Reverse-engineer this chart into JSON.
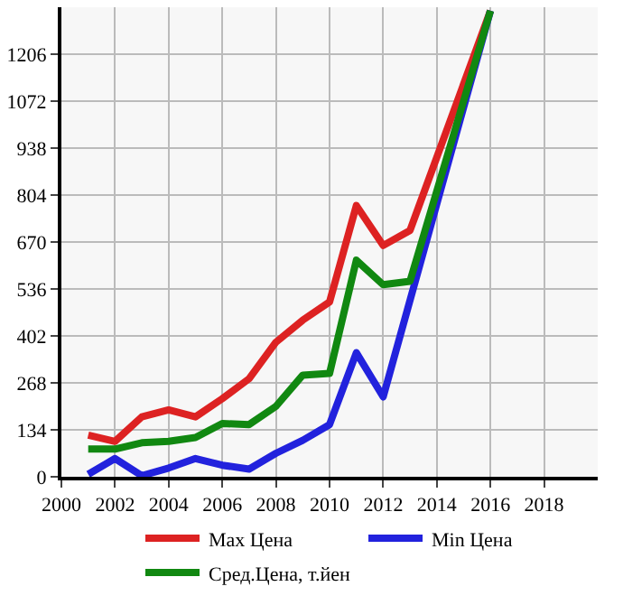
{
  "chart_data": {
    "type": "line",
    "xlim": [
      2000,
      2020
    ],
    "xticks": [
      2000,
      2002,
      2004,
      2006,
      2008,
      2010,
      2012,
      2014,
      2016,
      2018
    ],
    "ylim": [
      0,
      1340
    ],
    "yticks": [
      0,
      134,
      268,
      402,
      536,
      670,
      804,
      938,
      1072,
      1206
    ],
    "grid": true,
    "legend": "bottom",
    "marker": "none",
    "line_style": "solid",
    "series": [
      {
        "name": "Max Цена",
        "color": "#dd2222",
        "x": [
          2001,
          2002,
          2003,
          2004,
          2005,
          2006,
          2007,
          2008,
          2009,
          2010,
          2011,
          2012,
          2013,
          2016
        ],
        "values": [
          119,
          101,
          171,
          191,
          171,
          223,
          280,
          384,
          447,
          499,
          774,
          660,
          703,
          1330
        ]
      },
      {
        "name": "Min Цена",
        "color": "#2222dd",
        "x": [
          2001,
          2002,
          2003,
          2004,
          2005,
          2006,
          2007,
          2008,
          2009,
          2010,
          2011,
          2012,
          2016
        ],
        "values": [
          7,
          52,
          3,
          25,
          52,
          33,
          22,
          67,
          104,
          149,
          354,
          228,
          1330
        ]
      },
      {
        "name": "Сред.Цена, т.йен",
        "color": "#118811",
        "x": [
          2001,
          2002,
          2003,
          2004,
          2005,
          2006,
          2007,
          2008,
          2009,
          2010,
          2011,
          2012,
          2013,
          2016
        ],
        "values": [
          79,
          79,
          97,
          101,
          112,
          152,
          149,
          201,
          290,
          295,
          618,
          548,
          558,
          1330
        ]
      }
    ]
  }
}
